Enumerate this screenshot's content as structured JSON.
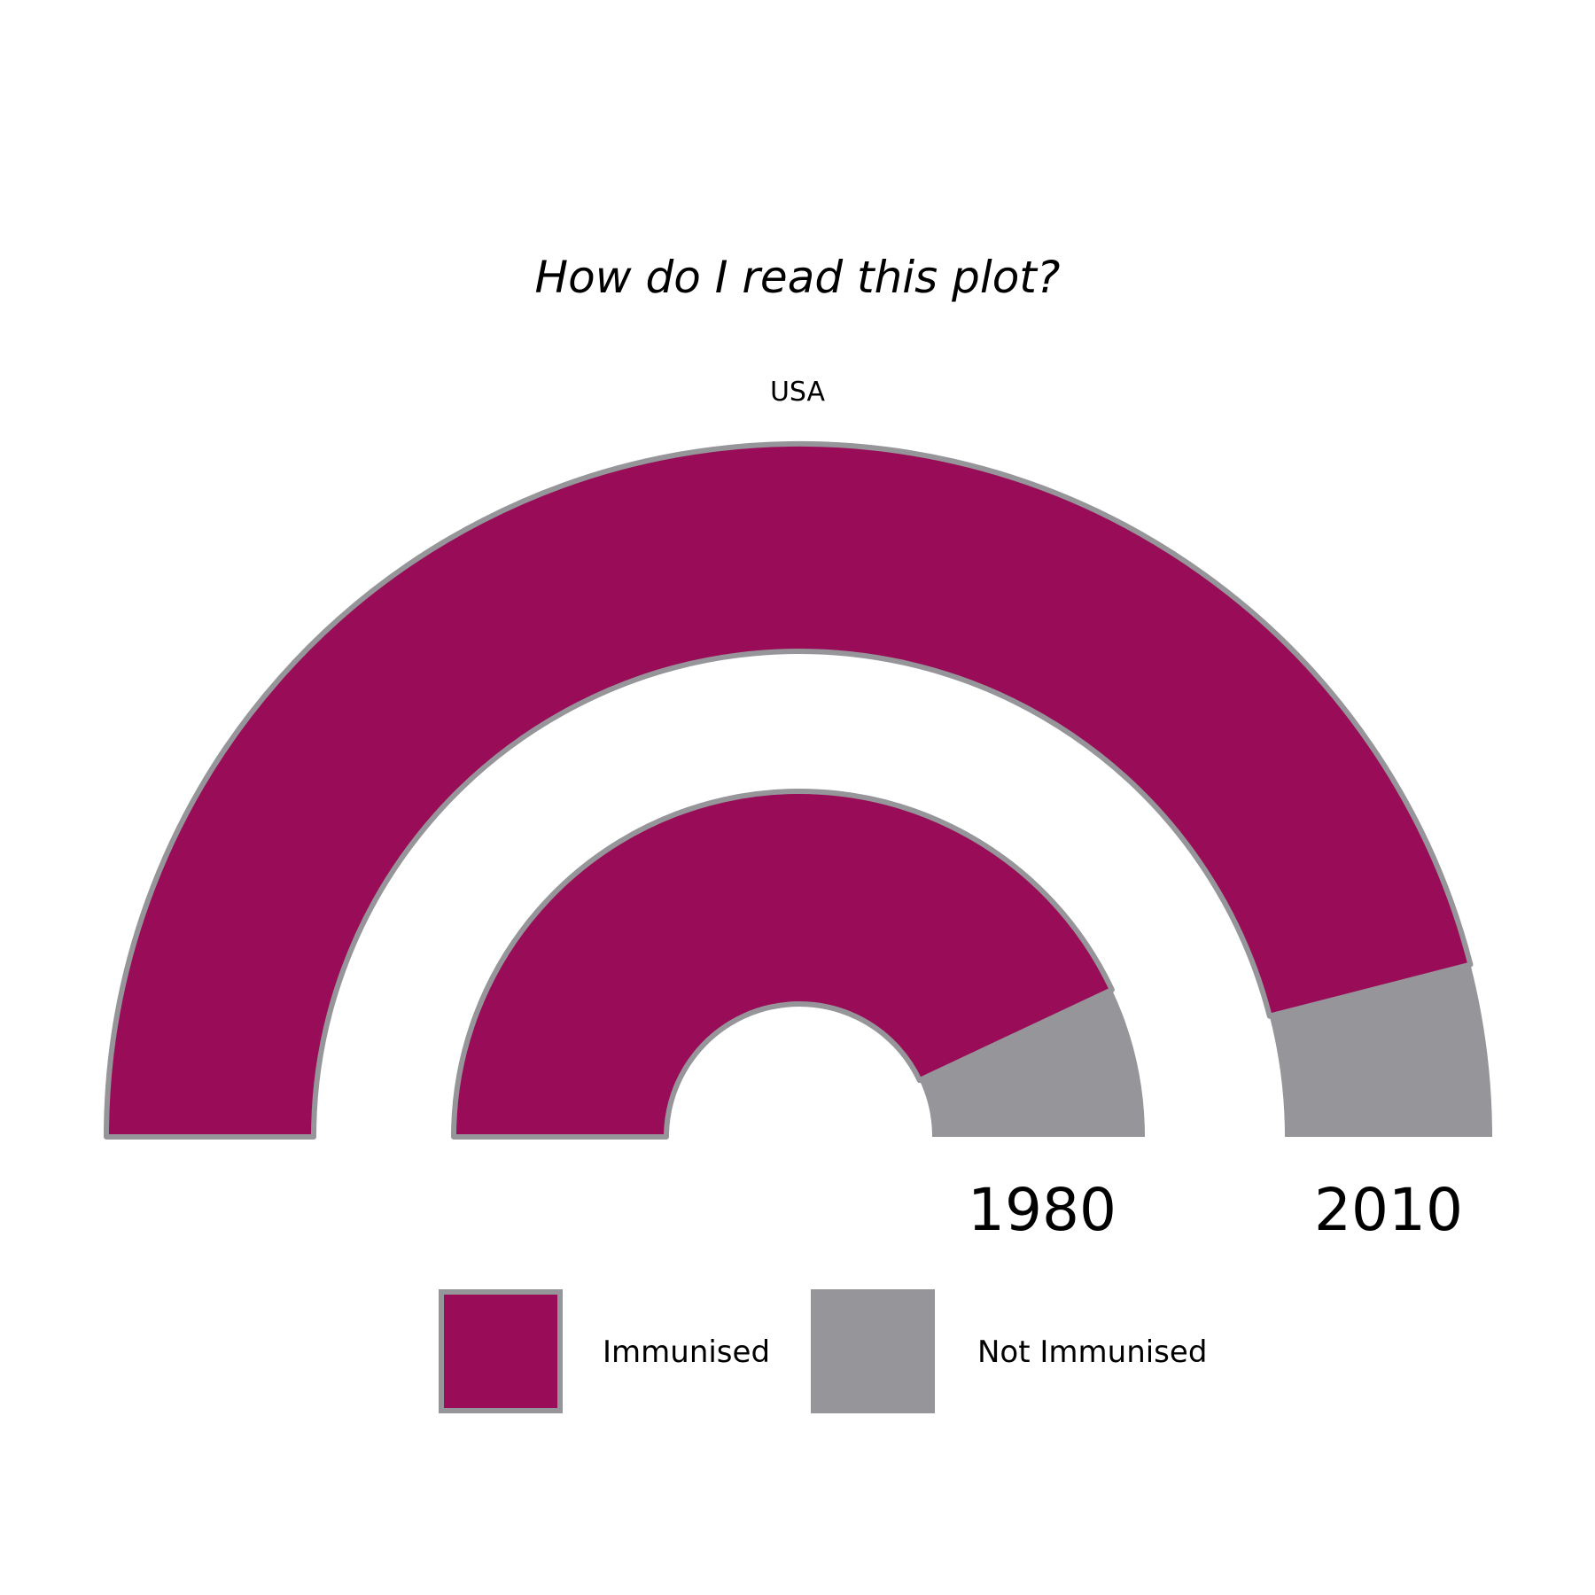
{
  "chart_data": {
    "type": "pie",
    "shape": "semicircular-donut",
    "title": "How do I read this plot?",
    "subtitle": "USA",
    "rings": [
      {
        "label": "1980",
        "values": {
          "Immunised": 86,
          "Not Immunised": 14
        }
      },
      {
        "label": "2010",
        "values": {
          "Immunised": 92,
          "Not Immunised": 8
        }
      }
    ],
    "legend": {
      "placement": "bottom",
      "items": [
        {
          "name": "Immunised",
          "color": "#990c57"
        },
        {
          "name": "Not Immunised",
          "color": "#96959a"
        }
      ]
    },
    "colors": {
      "immunised": "#990c57",
      "not_immunised": "#96959a",
      "outline": "#96959a"
    }
  }
}
